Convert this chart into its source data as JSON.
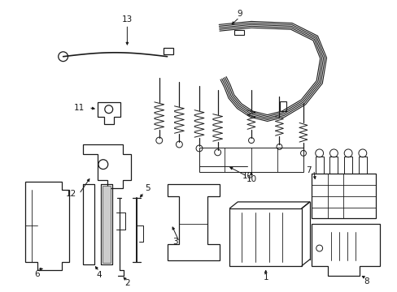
{
  "background_color": "#ffffff",
  "line_color": "#1a1a1a",
  "lw": 0.9,
  "fig_width": 4.89,
  "fig_height": 3.6,
  "dpi": 100
}
